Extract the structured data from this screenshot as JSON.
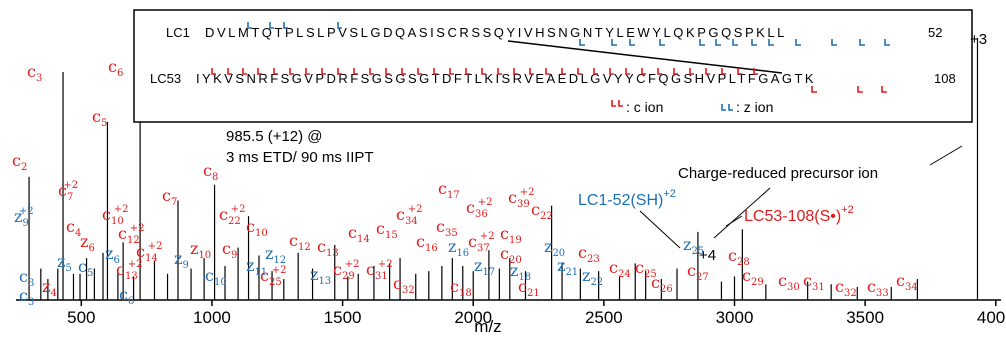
{
  "chart_data": {
    "type": "mass spectrum",
    "xlabel": "m/z",
    "xlim": [
      250,
      4020
    ],
    "x_ticks": [
      "500",
      "1000",
      "1500",
      "2000",
      "2500",
      "3000",
      "3500",
      "4000"
    ],
    "tick_values": [
      500,
      1000,
      1500,
      2000,
      2500,
      3000,
      3500,
      4000
    ],
    "ylim": [
      0,
      100
    ],
    "colors": {
      "c_ion": "#e41a1c",
      "z_ion": "#1f6fb5",
      "text": "#000000"
    },
    "peaks": [
      {
        "mz": 300,
        "rel": 47
      },
      {
        "mz": 345,
        "rel": 12
      },
      {
        "mz": 372,
        "rel": 8
      },
      {
        "mz": 410,
        "rel": 12
      },
      {
        "mz": 430,
        "rel": 87
      },
      {
        "mz": 470,
        "rel": 10
      },
      {
        "mz": 495,
        "rel": 10
      },
      {
        "mz": 520,
        "rel": 16
      },
      {
        "mz": 550,
        "rel": 12
      },
      {
        "mz": 583,
        "rel": 18
      },
      {
        "mz": 600,
        "rel": 68
      },
      {
        "mz": 640,
        "rel": 11
      },
      {
        "mz": 660,
        "rel": 22
      },
      {
        "mz": 700,
        "rel": 9
      },
      {
        "mz": 725,
        "rel": 76
      },
      {
        "mz": 780,
        "rel": 15
      },
      {
        "mz": 830,
        "rel": 10
      },
      {
        "mz": 870,
        "rel": 38
      },
      {
        "mz": 920,
        "rel": 12
      },
      {
        "mz": 970,
        "rel": 16
      },
      {
        "mz": 1010,
        "rel": 44
      },
      {
        "mz": 1050,
        "rel": 13
      },
      {
        "mz": 1100,
        "rel": 20
      },
      {
        "mz": 1140,
        "rel": 32
      },
      {
        "mz": 1180,
        "rel": 17
      },
      {
        "mz": 1230,
        "rel": 11
      },
      {
        "mz": 1275,
        "rel": 8
      },
      {
        "mz": 1330,
        "rel": 18
      },
      {
        "mz": 1385,
        "rel": 12
      },
      {
        "mz": 1470,
        "rel": 21
      },
      {
        "mz": 1520,
        "rel": 9
      },
      {
        "mz": 1560,
        "rel": 10
      },
      {
        "mz": 1620,
        "rel": 13
      },
      {
        "mz": 1680,
        "rel": 14
      },
      {
        "mz": 1720,
        "rel": 16
      },
      {
        "mz": 1780,
        "rel": 10
      },
      {
        "mz": 1830,
        "rel": 11
      },
      {
        "mz": 1880,
        "rel": 13
      },
      {
        "mz": 1920,
        "rel": 16
      },
      {
        "mz": 1960,
        "rel": 13
      },
      {
        "mz": 2000,
        "rel": 11
      },
      {
        "mz": 2060,
        "rel": 19
      },
      {
        "mz": 2100,
        "rel": 12
      },
      {
        "mz": 2140,
        "rel": 16
      },
      {
        "mz": 2200,
        "rel": 11
      },
      {
        "mz": 2300,
        "rel": 36
      },
      {
        "mz": 2340,
        "rel": 14
      },
      {
        "mz": 2410,
        "rel": 12
      },
      {
        "mz": 2480,
        "rel": 11
      },
      {
        "mz": 2560,
        "rel": 9
      },
      {
        "mz": 2620,
        "rel": 14
      },
      {
        "mz": 2660,
        "rel": 11
      },
      {
        "mz": 2720,
        "rel": 8
      },
      {
        "mz": 2780,
        "rel": 12
      },
      {
        "mz": 2860,
        "rel": 26
      },
      {
        "mz": 2950,
        "rel": 7
      },
      {
        "mz": 3000,
        "rel": 9
      },
      {
        "mz": 3030,
        "rel": 27
      },
      {
        "mz": 3120,
        "rel": 6
      },
      {
        "mz": 3280,
        "rel": 7
      },
      {
        "mz": 3370,
        "rel": 6
      },
      {
        "mz": 3470,
        "rel": 5
      },
      {
        "mz": 3600,
        "rel": 5
      },
      {
        "mz": 3700,
        "rel": 8
      },
      {
        "mz": 3930,
        "rel": 100
      }
    ],
    "annotations": {
      "precursor": "985.5 (+12) @",
      "method": "3 ms ETD/ 90 ms IIPT",
      "charge_reduced": "Charge-reduced precursor ion",
      "lc1_52": "LC1-52(SH)",
      "lc1_52_charge": "+2",
      "lc53_108": "LC53-108(S•)",
      "lc53_108_charge": "+2",
      "charge_plus3": "+3",
      "charge_plus4": "+4"
    },
    "ion_labels": [
      {
        "ion": "c",
        "num": "2",
        "color": "c",
        "x": 12,
        "y": 166
      },
      {
        "ion": "c",
        "num": "3",
        "color": "c",
        "x": 27,
        "y": 77
      },
      {
        "ion": "c",
        "num": "5",
        "color": "c",
        "x": 92,
        "y": 122
      },
      {
        "ion": "c",
        "num": "6",
        "color": "c",
        "x": 108,
        "y": 72
      },
      {
        "ion": "c",
        "num": "7",
        "charge": "+2",
        "color": "c",
        "x": 58,
        "y": 196
      },
      {
        "ion": "c",
        "num": "4",
        "color": "c",
        "x": 66,
        "y": 232
      },
      {
        "ion": "z",
        "num": "6",
        "color": "c",
        "x": 80,
        "y": 247
      },
      {
        "ion": "c",
        "num": "10",
        "charge": "+2",
        "color": "c",
        "x": 102,
        "y": 220
      },
      {
        "ion": "c",
        "num": "12",
        "charge": "+2",
        "color": "c",
        "x": 118,
        "y": 239
      },
      {
        "ion": "c",
        "num": "14",
        "charge": "+2",
        "color": "c",
        "x": 136,
        "y": 257
      },
      {
        "ion": "c",
        "num": "13",
        "charge": "+2",
        "color": "c",
        "x": 116,
        "y": 275
      },
      {
        "ion": "c",
        "num": "7",
        "color": "c",
        "x": 162,
        "y": 201
      },
      {
        "ion": "c",
        "num": "8",
        "color": "c",
        "x": 203,
        "y": 176
      },
      {
        "ion": "c",
        "num": "22",
        "charge": "+2",
        "color": "c",
        "x": 219,
        "y": 220
      },
      {
        "ion": "c",
        "num": "10",
        "color": "c",
        "x": 246,
        "y": 232
      },
      {
        "ion": "z",
        "num": "10",
        "color": "c",
        "x": 190,
        "y": 254
      },
      {
        "ion": "c",
        "num": "9",
        "color": "c",
        "x": 222,
        "y": 254
      },
      {
        "ion": "c",
        "num": "12",
        "color": "c",
        "x": 289,
        "y": 246
      },
      {
        "ion": "c",
        "num": "25",
        "charge": "+2",
        "color": "c",
        "x": 260,
        "y": 281
      },
      {
        "ion": "c",
        "num": "13",
        "color": "c",
        "x": 317,
        "y": 252
      },
      {
        "ion": "c",
        "num": "14",
        "color": "c",
        "x": 348,
        "y": 238
      },
      {
        "ion": "c",
        "num": "15",
        "color": "c",
        "x": 376,
        "y": 234
      },
      {
        "ion": "c",
        "num": "34",
        "charge": "+2",
        "color": "c",
        "x": 396,
        "y": 220
      },
      {
        "ion": "c",
        "num": "17",
        "color": "c",
        "x": 438,
        "y": 194
      },
      {
        "ion": "c",
        "num": "36",
        "charge": "+2",
        "color": "c",
        "x": 466,
        "y": 213
      },
      {
        "ion": "c",
        "num": "39",
        "charge": "+2",
        "color": "c",
        "x": 508,
        "y": 203
      },
      {
        "ion": "c",
        "num": "22",
        "color": "c",
        "x": 531,
        "y": 215
      },
      {
        "ion": "c",
        "num": "29",
        "charge": "+2",
        "color": "c",
        "x": 333,
        "y": 275
      },
      {
        "ion": "c",
        "num": "31",
        "charge": "+2",
        "color": "c",
        "x": 366,
        "y": 275
      },
      {
        "ion": "c",
        "num": "32",
        "color": "c",
        "x": 393,
        "y": 289
      },
      {
        "ion": "c",
        "num": "16",
        "color": "c",
        "x": 416,
        "y": 247
      },
      {
        "ion": "c",
        "num": "35",
        "color": "c",
        "x": 436,
        "y": 232
      },
      {
        "ion": "c",
        "num": "37",
        "charge": "+2",
        "color": "c",
        "x": 468,
        "y": 247
      },
      {
        "ion": "c",
        "num": "19",
        "color": "c",
        "x": 500,
        "y": 239
      },
      {
        "ion": "c",
        "num": "20",
        "color": "c",
        "x": 500,
        "y": 259
      },
      {
        "ion": "c",
        "num": "18",
        "color": "c",
        "x": 450,
        "y": 292
      },
      {
        "ion": "c",
        "num": "21",
        "color": "c",
        "x": 518,
        "y": 292
      },
      {
        "ion": "c",
        "num": "23",
        "color": "c",
        "x": 578,
        "y": 258
      },
      {
        "ion": "c",
        "num": "24",
        "color": "c",
        "x": 609,
        "y": 273
      },
      {
        "ion": "c",
        "num": "25",
        "color": "c",
        "x": 635,
        "y": 273
      },
      {
        "ion": "c",
        "num": "26",
        "color": "c",
        "x": 651,
        "y": 288
      },
      {
        "ion": "c",
        "num": "27",
        "color": "c",
        "x": 687,
        "y": 276
      },
      {
        "ion": "c",
        "num": "28",
        "color": "c",
        "x": 728,
        "y": 261
      },
      {
        "ion": "c",
        "num": "29",
        "color": "c",
        "x": 742,
        "y": 281
      },
      {
        "ion": "c",
        "num": "30",
        "color": "c",
        "x": 778,
        "y": 286
      },
      {
        "ion": "c",
        "num": "31",
        "color": "c",
        "x": 803,
        "y": 286
      },
      {
        "ion": "c",
        "num": "32",
        "color": "c",
        "x": 835,
        "y": 292
      },
      {
        "ion": "c",
        "num": "33",
        "color": "c",
        "x": 867,
        "y": 292
      },
      {
        "ion": "c",
        "num": "34",
        "color": "c",
        "x": 896,
        "y": 286
      },
      {
        "ion": "z",
        "num": "4",
        "color": "c",
        "x": 42,
        "y": 292
      },
      {
        "ion": "z",
        "num": "9",
        "charge": "+2",
        "color": "z",
        "x": 14,
        "y": 222
      },
      {
        "ion": "z",
        "num": "5",
        "color": "z",
        "x": 57,
        "y": 267
      },
      {
        "ion": "c",
        "num": "5",
        "color": "z",
        "x": 78,
        "y": 272
      },
      {
        "ion": "c",
        "num": "3",
        "color": "z",
        "x": 19,
        "y": 282
      },
      {
        "ion": "c",
        "num": "3",
        "color": "z",
        "x": 19,
        "y": 301
      },
      {
        "ion": "z",
        "num": "6",
        "color": "z",
        "x": 105,
        "y": 259
      },
      {
        "ion": "c",
        "num": "6",
        "color": "z",
        "x": 119,
        "y": 300
      },
      {
        "ion": "z",
        "num": "9",
        "color": "z",
        "x": 174,
        "y": 264
      },
      {
        "ion": "c",
        "num": "10",
        "color": "z",
        "x": 205,
        "y": 281
      },
      {
        "ion": "z",
        "num": "11",
        "color": "z",
        "x": 246,
        "y": 271
      },
      {
        "ion": "z",
        "num": "12",
        "color": "z",
        "x": 265,
        "y": 259
      },
      {
        "ion": "z",
        "num": "13",
        "color": "z",
        "x": 310,
        "y": 280
      },
      {
        "ion": "z",
        "num": "16",
        "color": "z",
        "x": 448,
        "y": 252
      },
      {
        "ion": "z",
        "num": "17",
        "color": "z",
        "x": 474,
        "y": 271
      },
      {
        "ion": "z",
        "num": "18",
        "color": "z",
        "x": 510,
        "y": 276
      },
      {
        "ion": "z",
        "num": "20",
        "color": "z",
        "x": 544,
        "y": 252
      },
      {
        "ion": "z",
        "num": "21",
        "color": "z",
        "x": 557,
        "y": 271
      },
      {
        "ion": "z",
        "num": "22",
        "color": "z",
        "x": 582,
        "y": 281
      },
      {
        "ion": "z",
        "num": "25",
        "color": "z",
        "x": 683,
        "y": 250
      }
    ],
    "sequence_box": {
      "row1": {
        "label": "LC1",
        "seq": "DVLMTQTPLSLPVSLGDQASISCRSSQYIVHSNGNTYLEWYLQKPGQSPKLL",
        "end": "52"
      },
      "row2": {
        "label": "LC53",
        "seq": "IYKVSNRFSGVPDRFSGSGSGTDFTLKISRVEAEDLGVYYCFQGSHVPLTFGAGTK",
        "end": "108"
      },
      "legend_c": ": c ion",
      "legend_z": ": z ion"
    }
  }
}
